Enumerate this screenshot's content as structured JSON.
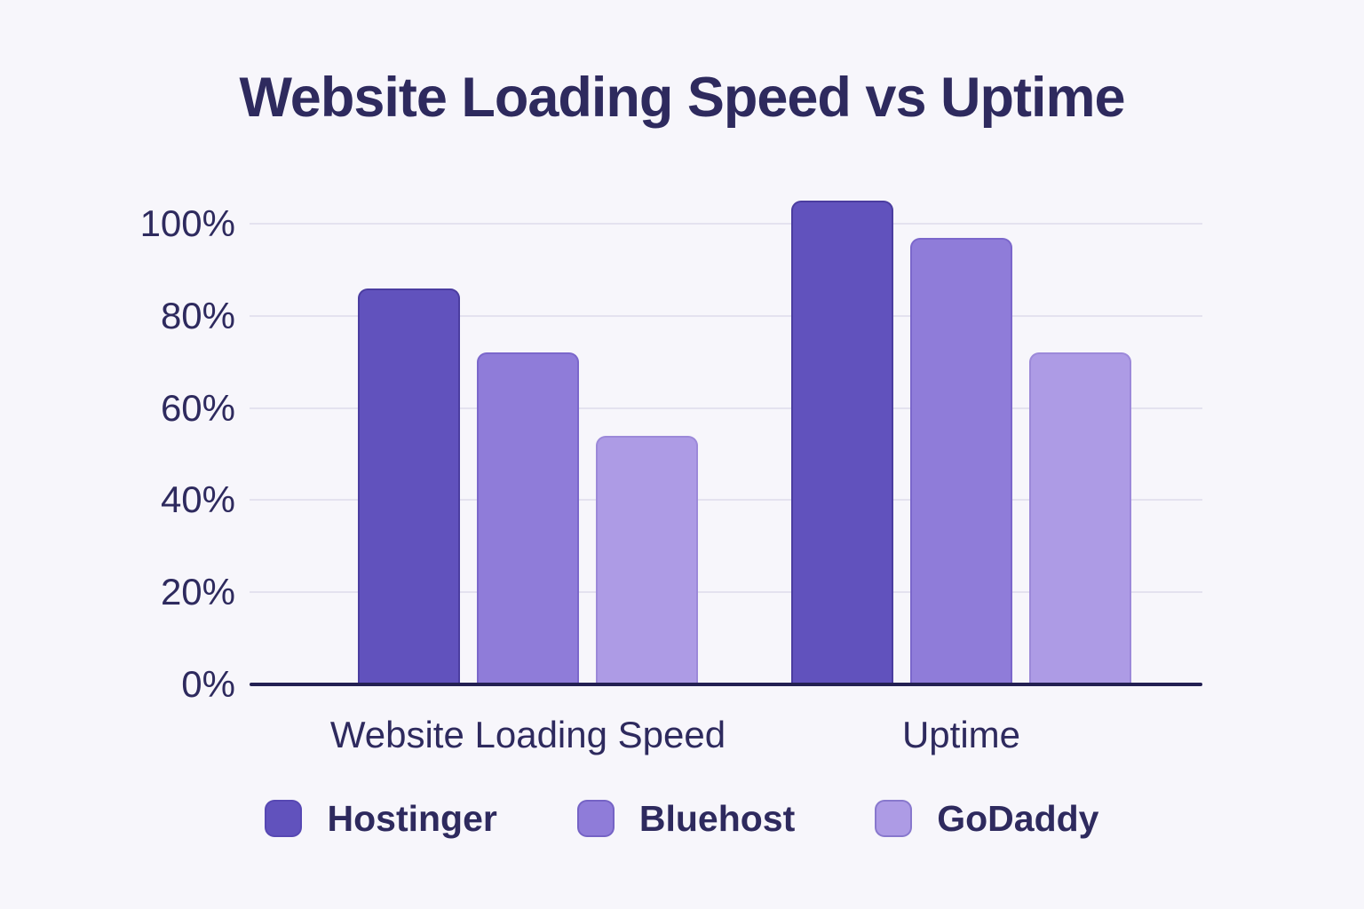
{
  "chart_data": {
    "type": "bar",
    "title": "Website Loading Speed vs Uptime",
    "categories": [
      "Website Loading Speed",
      "Uptime"
    ],
    "series": [
      {
        "name": "Hostinger",
        "color": "#6152bd",
        "border_color": "#4b3da0",
        "values": [
          86,
          105
        ]
      },
      {
        "name": "Bluehost",
        "color": "#8f7cd9",
        "border_color": "#7b67cb",
        "values": [
          72,
          97
        ]
      },
      {
        "name": "GoDaddy",
        "color": "#ad9be5",
        "border_color": "#9c89d9",
        "values": [
          54,
          72
        ]
      }
    ],
    "yticks": [
      {
        "label": "0%",
        "value": 0
      },
      {
        "label": "20%",
        "value": 20
      },
      {
        "label": "40%",
        "value": 40
      },
      {
        "label": "60%",
        "value": 60
      },
      {
        "label": "80%",
        "value": 80
      },
      {
        "label": "100%",
        "value": 100
      }
    ],
    "ylim": [
      0,
      105
    ],
    "xlabel": "",
    "ylabel": "",
    "grid": true,
    "legend_position": "bottom",
    "text_color": "#2e2a5e",
    "background_color": "#f7f6fb",
    "gridline_color": "#e4e2ef",
    "axis_color": "#232052"
  }
}
